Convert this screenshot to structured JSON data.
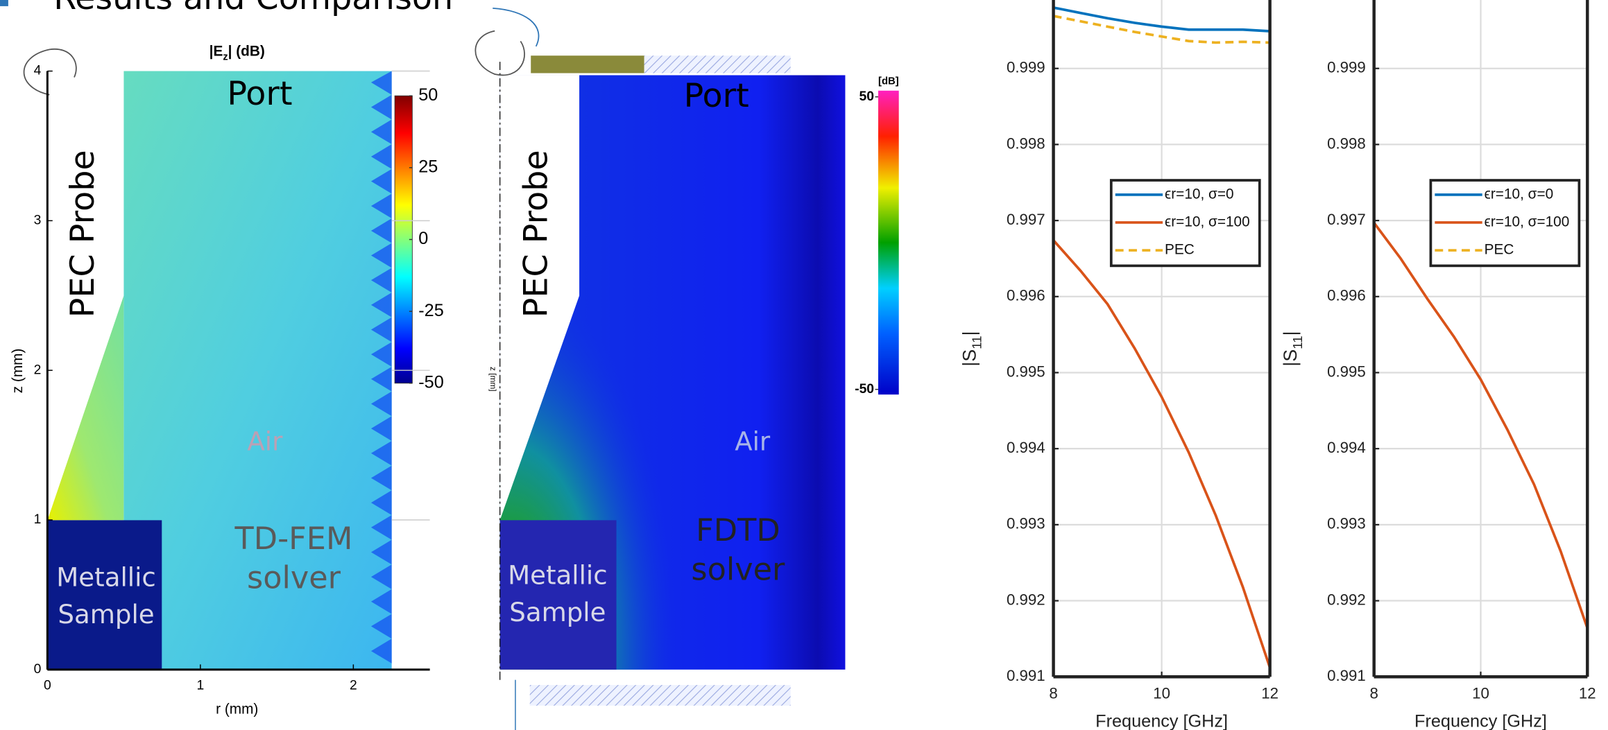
{
  "title": "Results and Comparison",
  "fem_plot": {
    "title": [
      "|E",
      "z",
      "| (dB)"
    ],
    "xlabel": "r (mm)",
    "ylabel": "z (mm)",
    "xlim": [
      0,
      2.5
    ],
    "ylim": [
      0,
      4
    ],
    "xticks": [
      0,
      1,
      2
    ],
    "yticks": [
      0,
      1,
      2,
      3,
      4
    ],
    "colorbar": {
      "lim": [
        -50,
        50
      ],
      "ticks": [
        50,
        25,
        0,
        -25,
        -50
      ]
    },
    "labels": {
      "port": "Port",
      "probe": "PEC Probe",
      "air": "Air",
      "solver": [
        "TD-FEM",
        "solver"
      ],
      "sample": [
        "Metallic",
        "Sample"
      ]
    }
  },
  "fdtd_plot": {
    "axis_label": "z [mm]",
    "colorbar": {
      "unit": "[dB]",
      "lim": [
        -50,
        50
      ],
      "ticks": [
        50,
        -50
      ]
    },
    "labels": {
      "port": "Port",
      "probe": "PEC Probe",
      "air": "Air",
      "solver": [
        "FDTD",
        "solver"
      ],
      "sample": [
        "Metallic",
        "Sample"
      ]
    }
  },
  "chart_data": [
    {
      "type": "line",
      "xlabel": "Frequency [GHz]",
      "ylabel": [
        "|S",
        "11",
        "|"
      ],
      "x": [
        8,
        8.5,
        9,
        9.5,
        10,
        10.5,
        11,
        11.5,
        12
      ],
      "xlim": [
        8,
        12
      ],
      "xticks": [
        8,
        10,
        12
      ],
      "ylim": [
        0.991,
        0.9999
      ],
      "yticks": [
        0.991,
        0.992,
        0.993,
        0.994,
        0.995,
        0.996,
        0.997,
        0.998,
        0.999
      ],
      "grid": true,
      "legend": "right",
      "series": [
        {
          "name": "ϵr=10, σ=0",
          "color": "#0072bd",
          "dash": false,
          "values": [
            0.9998,
            0.99973,
            0.99966,
            0.9996,
            0.99955,
            0.99951,
            0.99951,
            0.99951,
            0.99949
          ]
        },
        {
          "name": "ϵr=10, σ=100",
          "color": "#d95319",
          "dash": false,
          "values": [
            0.99674,
            0.99634,
            0.9959,
            0.99532,
            0.99468,
            0.99395,
            0.99312,
            0.99218,
            0.99112
          ]
        },
        {
          "name": "PEC",
          "color": "#edb120",
          "dash": true,
          "values": [
            0.99969,
            0.99962,
            0.99955,
            0.99948,
            0.99942,
            0.99936,
            0.99934,
            0.99935,
            0.99934
          ]
        }
      ]
    },
    {
      "type": "line",
      "xlabel": "Frequency [GHz]",
      "ylabel": [
        "|S",
        "11",
        "|"
      ],
      "x": [
        8,
        8.5,
        9,
        9.5,
        10,
        10.5,
        11,
        11.5,
        12
      ],
      "xlim": [
        8,
        12
      ],
      "xticks": [
        8,
        10,
        12
      ],
      "ylim": [
        0.991,
        0.9999
      ],
      "yticks": [
        0.991,
        0.992,
        0.993,
        0.994,
        0.995,
        0.996,
        0.997,
        0.998,
        0.999
      ],
      "grid": true,
      "legend": "right",
      "series": [
        {
          "name": "ϵr=10, σ=0",
          "color": "#0072bd",
          "dash": false,
          "values": [
            null,
            null,
            null,
            null,
            null,
            null,
            null,
            null,
            null
          ]
        },
        {
          "name": "ϵr=10, σ=100",
          "color": "#d95319",
          "dash": false,
          "values": [
            0.99697,
            0.9965,
            0.99597,
            0.99547,
            0.99491,
            0.99425,
            0.99353,
            0.99265,
            0.99164
          ]
        },
        {
          "name": "PEC",
          "color": "#edb120",
          "dash": true,
          "values": [
            null,
            null,
            null,
            null,
            null,
            null,
            null,
            null,
            null
          ]
        }
      ]
    }
  ]
}
